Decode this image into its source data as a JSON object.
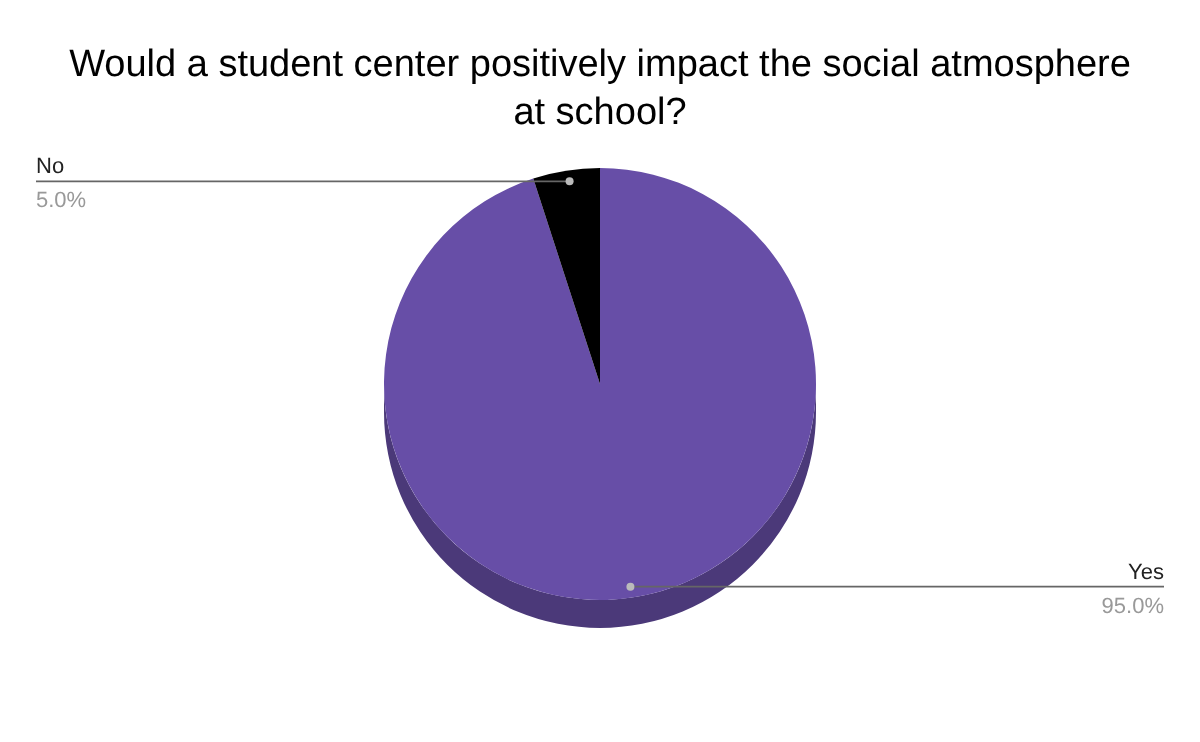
{
  "chart_data": {
    "type": "pie",
    "title": "Would a student center positively impact the social atmosphere at school?",
    "categories": [
      "Yes",
      "No"
    ],
    "values": [
      95,
      5
    ],
    "colors": [
      "#674ea7",
      "#000000"
    ],
    "value_labels": [
      "95.0%",
      "5.0%"
    ],
    "legend": false
  }
}
